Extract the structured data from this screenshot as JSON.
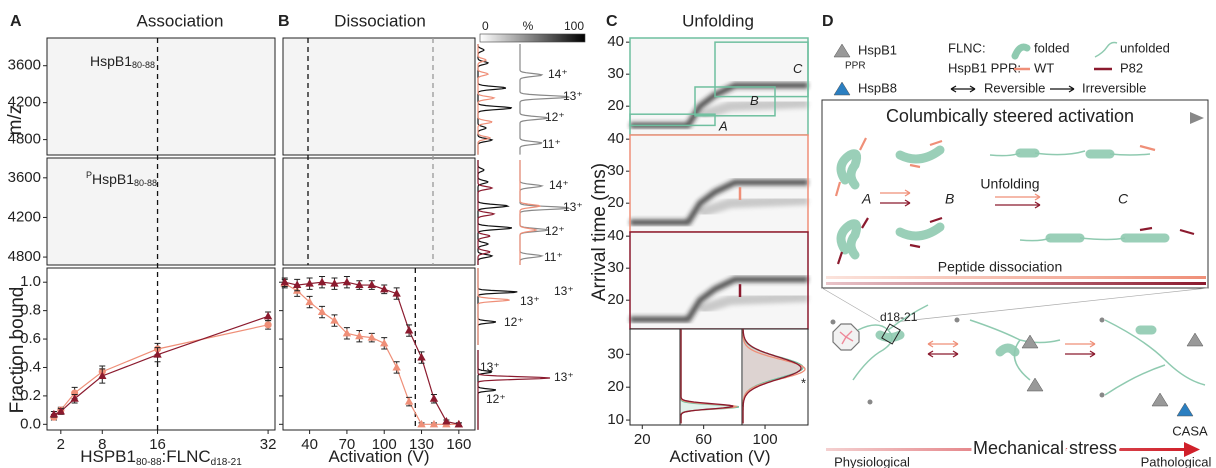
{
  "figure": {
    "panel_labels": [
      "A",
      "B",
      "C",
      "D"
    ],
    "A": {
      "title": "Association",
      "species": [
        {
          "name": "HspB1",
          "sub": "80-88"
        },
        {
          "pre": "P",
          "name": "HspB1",
          "sub": "80-88"
        }
      ]
    },
    "B": {
      "title": "Dissociation",
      "scale": {
        "min": 0,
        "unit": "%",
        "max": 100
      },
      "charge_labels": [
        "14⁺",
        "13⁺",
        "12⁺",
        "11⁺",
        "14⁺",
        "13⁺",
        "12⁺",
        "11⁺",
        "13⁺",
        "13⁺",
        "12⁺",
        "13⁺",
        "13⁺",
        "12⁺"
      ]
    },
    "C": {
      "title": "Unfolding",
      "states": [
        "A",
        "B",
        "C"
      ],
      "asterisk": "*"
    },
    "D": {
      "legend": {
        "hspb1": "HspB1",
        "ppr": "PPR",
        "hspb8": "HspB8",
        "flnc": "FLNC:",
        "folded": "folded",
        "unfolded": "unfolded",
        "ppr_variant": "HspB1 PPR:",
        "wt": "WT",
        "p82": "P82",
        "reversible": "Reversible",
        "irreversible": "Irreversible"
      },
      "box_title": "Columbically steered activation",
      "states": [
        "A",
        "B",
        "C"
      ],
      "unfolding": "Unfolding",
      "peptide": "Peptide dissociation",
      "domain": "d18-21",
      "casa": "CASA",
      "stress": "Mechanical stress",
      "start": "Physiological",
      "end": "Pathological"
    }
  },
  "chart_data": [
    {
      "type": "heatmap",
      "ylabel": "m/z",
      "ylim": [
        3150,
        5050
      ],
      "yticks": [
        3600,
        4200,
        4800
      ],
      "y_inverted": true
    },
    {
      "type": "heatmap",
      "ylim": [
        3300,
        4920
      ],
      "yticks": [
        3600,
        4200,
        4800
      ],
      "y_inverted": true
    },
    {
      "type": "line",
      "ylabel": "Fraction bound",
      "xlabel": [
        "HSPB1",
        "80-88",
        ":FLNC",
        "d18-21"
      ],
      "x": [
        1,
        2,
        4,
        8,
        16,
        32
      ],
      "xlim": [
        0,
        33
      ],
      "xticks": [
        2,
        8,
        16,
        32
      ],
      "ylim": [
        -0.04,
        1.1
      ],
      "yticks": [
        {
          "value": 0,
          "label": "0.0"
        },
        0.2,
        0.4,
        0.6,
        0.8,
        {
          "value": 1,
          "label": "1.0"
        }
      ],
      "reference_lines": [
        16
      ],
      "series": [
        {
          "color": "#ef8f78",
          "marker": "circle",
          "values": [
            0.05,
            0.1,
            0.22,
            0.37,
            0.53,
            0.7
          ],
          "errors": [
            0.02,
            0.02,
            0.04,
            0.04,
            0.04,
            0.03
          ]
        },
        {
          "color": "#8b1a2e",
          "marker": "triangle",
          "values": [
            0.07,
            0.09,
            0.18,
            0.34,
            0.49,
            0.76
          ],
          "errors": [
            0.02,
            0.02,
            0.03,
            0.05,
            0.05,
            0.03
          ]
        }
      ]
    },
    {
      "type": "line",
      "xlabel": [
        "Activation (V)"
      ],
      "x": [
        20,
        30,
        40,
        50,
        60,
        70,
        80,
        90,
        100,
        110,
        120,
        130,
        140,
        150,
        160
      ],
      "xlim": [
        18.6,
        173
      ],
      "xticks": [
        40,
        70,
        100,
        130,
        160
      ],
      "ylim": [
        -0.04,
        1.1
      ],
      "yticks": [
        {
          "value": 0,
          "label": "0.0"
        },
        0.2,
        0.4,
        0.6,
        0.8,
        {
          "value": 1,
          "label": "1.0"
        }
      ],
      "reference_lines": [
        125
      ],
      "series": [
        {
          "color": "#ef8f78",
          "marker": "triangle",
          "values": [
            0.99,
            0.94,
            0.86,
            0.79,
            0.73,
            0.64,
            0.62,
            0.61,
            0.57,
            0.4,
            0.16,
            0,
            0,
            0,
            0
          ],
          "errors": [
            0.03,
            0.04,
            0.04,
            0.04,
            0.04,
            0.04,
            0.04,
            0.03,
            0.04,
            0.04,
            0.03,
            0.01,
            0.01,
            0.01,
            0.01
          ]
        },
        {
          "color": "#8b1a2e",
          "marker": "triangle",
          "values": [
            1,
            0.98,
            0.99,
            1,
            0.99,
            1,
            0.98,
            0.98,
            0.95,
            0.92,
            0.66,
            0.47,
            0.18,
            0.02,
            0
          ],
          "errors": [
            0.03,
            0.04,
            0.04,
            0.04,
            0.04,
            0.04,
            0.03,
            0.03,
            0.03,
            0.04,
            0.04,
            0.04,
            0.03,
            0.01,
            0.01
          ]
        }
      ]
    },
    {
      "type": "heatmap",
      "ylim": [
        11,
        41.3
      ],
      "yticks": [
        20,
        30,
        40
      ]
    },
    {
      "type": "heatmap",
      "ylim": [
        11,
        41.3
      ],
      "yticks": [
        20,
        30,
        40
      ]
    },
    {
      "type": "heatmap",
      "ylim": [
        11,
        41.3
      ],
      "yticks": [
        20,
        30,
        40
      ]
    },
    {
      "type": "distribution",
      "ylabel": "Arrival time (ms)",
      "xlabel": [
        "Activation (V)"
      ],
      "ylim": [
        8.5,
        37.7
      ],
      "yticks": [
        10,
        20,
        30
      ],
      "xlim": [
        12,
        128
      ],
      "xticks": [
        20,
        60,
        100
      ]
    }
  ]
}
